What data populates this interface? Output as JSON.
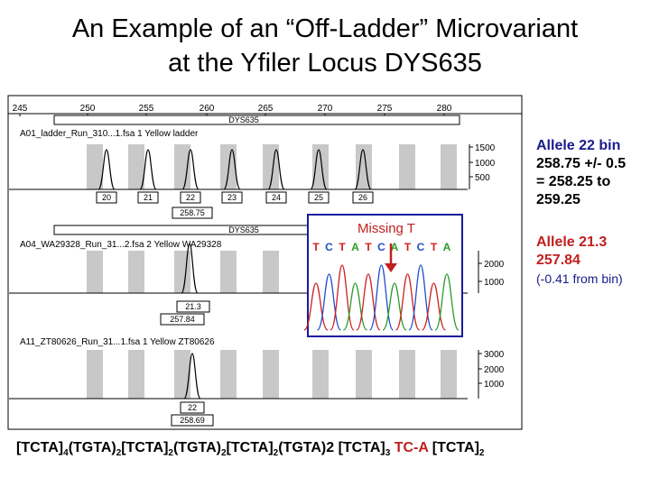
{
  "title_line1": "An Example of an “Off-Ladder” Microvariant",
  "title_line2": "at the Yfiler Locus DYS635",
  "axis_ticks": [
    "245",
    "250",
    "255",
    "260",
    "265",
    "270",
    "275",
    "280"
  ],
  "locus_name": "DYS635",
  "panel1": {
    "header": "A01_ladder_Run_310...1.fsa  1 Yellow  ladder",
    "y_ticks": [
      "1500",
      "1000",
      "500"
    ],
    "allele_labels": [
      "20",
      "21",
      "22",
      "23",
      "24",
      "25",
      "26"
    ],
    "size_label": "258.75"
  },
  "panel2": {
    "header": "A04_WA29328_Run_31...2.fsa  2 Yellow  WA29328",
    "y_ticks": [
      "2000",
      "1000"
    ],
    "allele_label": "21.3",
    "size_label": "257.84"
  },
  "panel3": {
    "header": "A11_ZT80626_Run_31...1.fsa  1 Yellow  ZT80626",
    "y_ticks": [
      "3000",
      "2000",
      "1000"
    ],
    "allele_label": "22",
    "size_label": "258.69"
  },
  "inset": {
    "label": "Missing T",
    "bases": [
      "T",
      "C",
      "T",
      "A",
      "T",
      "C",
      "A",
      "T",
      "C",
      "T",
      "A"
    ]
  },
  "allele22": {
    "line1": "Allele 22 bin",
    "line2": "258.75 +/- 0.5",
    "line3": "= 258.25 to",
    "line4": "259.25"
  },
  "allele213": {
    "line1": "Allele 21.3",
    "line2": "257.84",
    "line3": "(-0.41 from bin)"
  },
  "sequence": {
    "p1": "[TCTA]",
    "s1": "4",
    "p2": "(TGTA)",
    "s2": "2",
    "p3": "[TCTA]",
    "s3": "2",
    "p4": "(TGTA)",
    "s4": "2",
    "p5": "[TCTA]",
    "s5": "2",
    "p6": "(TGTA)2 [TCTA]",
    "s6": "3",
    "p7": " TC-A",
    "p8": " [TCTA]",
    "s8": "2"
  },
  "colors": {
    "navy": "#1a1a8c",
    "red": "#c02020",
    "bin_gray": "#c8c8c8",
    "trace_a": "#2a9c2a",
    "trace_c": "#2050c8",
    "trace_g": "#111111",
    "trace_t": "#d02020",
    "inset_border": "#1a1aa0"
  }
}
